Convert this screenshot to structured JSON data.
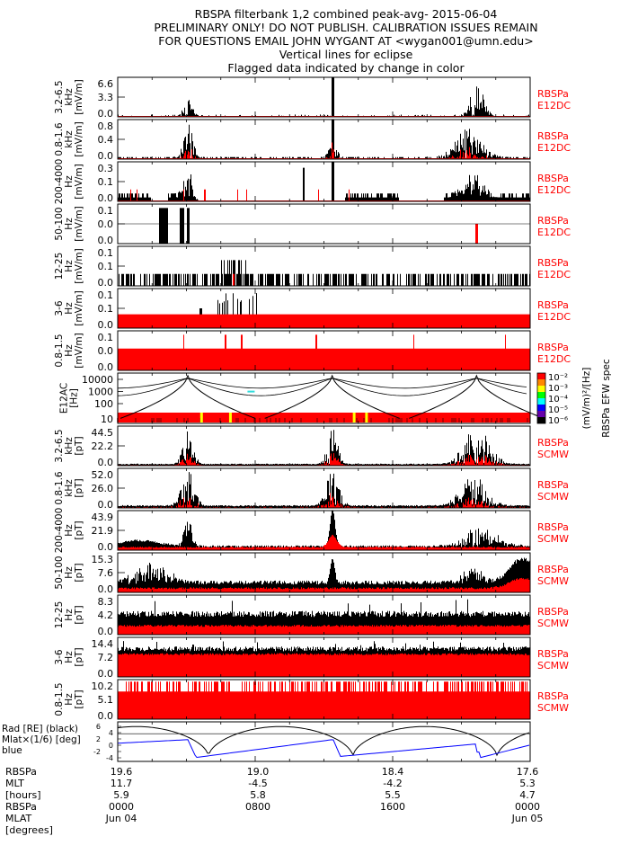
{
  "title_lines": [
    "RBSPA filterbank 1,2 combined peak-avg- 2015-06-04",
    "PRELIMINARY ONLY! DO NOT PUBLISH. CALIBRATION ISSUES REMAIN",
    "FOR QUESTIONS EMAIL JOHN WYGANT AT <wygan001@umn.edu>",
    "Vertical lines for eclipse",
    "Flagged data indicated by change in color"
  ],
  "colors": {
    "primary": "#000000",
    "flagged": "#ff0000",
    "mlat": "#0000ff"
  },
  "chart_data": [
    {
      "type": "line",
      "ylabel": [
        "3.2-6.5",
        "kHz",
        "[mV/m]"
      ],
      "yticks": [
        "0.0",
        "3.3",
        "6.6"
      ],
      "ylim": [
        0,
        6.6
      ],
      "right_label": [
        "RBSPa",
        "E12DC"
      ]
    },
    {
      "type": "line",
      "ylabel": [
        "0.8-1.6",
        "kHz",
        "[mV/m]"
      ],
      "yticks": [
        "0.0",
        "0.4",
        "0.8"
      ],
      "ylim": [
        0,
        0.8
      ],
      "right_label": [
        "RBSPa",
        "E12DC"
      ]
    },
    {
      "type": "line",
      "ylabel": [
        "200-4000",
        "Hz",
        "[mV/m]"
      ],
      "yticks": [
        "0.0",
        "0.1",
        "0.3"
      ],
      "ylim": [
        0,
        0.3
      ],
      "right_label": [
        "RBSPa",
        "E12DC"
      ]
    },
    {
      "type": "line",
      "ylabel": [
        "50-100",
        "Hz",
        "[mV/m]"
      ],
      "yticks": [
        "0.0",
        "0.0",
        "0.1"
      ],
      "ylim": [
        0,
        0.1
      ],
      "right_label": [
        "RBSPa",
        "E12DC"
      ]
    },
    {
      "type": "line",
      "ylabel": [
        "12-25",
        "Hz",
        "[mV/m]"
      ],
      "yticks": [
        "0.0",
        "0.1",
        "0.1"
      ],
      "ylim": [
        0,
        0.1
      ],
      "right_label": [
        "RBSPa",
        "E12DC"
      ]
    },
    {
      "type": "line",
      "ylabel": [
        "3-6",
        "Hz",
        "[mV/m]"
      ],
      "yticks": [
        "0.0",
        "0.1",
        "0.1"
      ],
      "ylim": [
        0,
        0.1
      ],
      "right_label": [
        "RBSPa",
        "E12DC"
      ]
    },
    {
      "type": "line",
      "ylabel": [
        "0.8-1.5",
        "Hz",
        "[mV/m]"
      ],
      "yticks": [
        "0.0",
        "0.0",
        "0.1"
      ],
      "ylim": [
        0,
        0.1
      ],
      "right_label": [
        "RBSPa",
        "E12DC"
      ]
    },
    {
      "type": "heatmap",
      "ylabel": [
        "E12AC",
        "[Hz]"
      ],
      "yticks": [
        "10",
        "100",
        "1000",
        "10000"
      ],
      "yscale": "log",
      "ylim": [
        5,
        20000
      ],
      "colorbar": {
        "ticks": [
          "10⁻²",
          "10⁻³",
          "10⁻⁴",
          "10⁻⁵",
          "10⁻⁶"
        ],
        "label": "(mV/m)²/[Hz]",
        "title": "RBSPa EFW spec"
      }
    },
    {
      "type": "line",
      "ylabel": [
        "3.2-6.5",
        "kHz",
        "[pT]"
      ],
      "yticks": [
        "0.0",
        "22.2",
        "44.5"
      ],
      "ylim": [
        0,
        44.5
      ],
      "right_label": [
        "RBSPa",
        "SCMW"
      ]
    },
    {
      "type": "line",
      "ylabel": [
        "0.8-1.6",
        "kHz",
        "[pT]"
      ],
      "yticks": [
        "0.0",
        "26.0",
        "52.0"
      ],
      "ylim": [
        0,
        52.0
      ],
      "right_label": [
        "RBSPa",
        "SCMW"
      ]
    },
    {
      "type": "line",
      "ylabel": [
        "200-4000",
        "Hz",
        "[pT]"
      ],
      "yticks": [
        "0.0",
        "21.9",
        "43.9"
      ],
      "ylim": [
        0,
        43.9
      ],
      "right_label": [
        "RBSPa",
        "SCMW"
      ]
    },
    {
      "type": "line",
      "ylabel": [
        "50-100",
        "Hz",
        "[pT]"
      ],
      "yticks": [
        "0.0",
        "7.6",
        "15.3"
      ],
      "ylim": [
        0,
        15.3
      ],
      "right_label": [
        "RBSPa",
        "SCMW"
      ]
    },
    {
      "type": "line",
      "ylabel": [
        "12-25",
        "Hz",
        "[pT]"
      ],
      "yticks": [
        "0.0",
        "4.2",
        "8.3"
      ],
      "ylim": [
        0,
        8.3
      ],
      "right_label": [
        "RBSPa",
        "SCMW"
      ]
    },
    {
      "type": "line",
      "ylabel": [
        "3-6",
        "Hz",
        "[pT]"
      ],
      "yticks": [
        "0.0",
        "7.2",
        "14.4"
      ],
      "ylim": [
        0,
        14.4
      ],
      "right_label": [
        "RBSPa",
        "SCMW"
      ]
    },
    {
      "type": "line",
      "ylabel": [
        "0.8-1.5",
        "Hz",
        "[pT]"
      ],
      "yticks": [
        "0.0",
        "5.1",
        "10.2"
      ],
      "ylim": [
        0,
        10.2
      ],
      "right_label": [
        "RBSPa",
        "SCMW"
      ]
    },
    {
      "type": "line",
      "ylabel": [
        "Rad [RE] (black)",
        "Mlat×(1/6) [deg] blue"
      ],
      "yticks": [
        "-4",
        "-2",
        "0",
        "2",
        "4",
        "6"
      ],
      "ylim": [
        -5,
        6.5
      ],
      "series": [
        {
          "color": "#000000"
        },
        {
          "color": "#0000ff"
        }
      ]
    }
  ],
  "x_axis": {
    "row_labels": [
      "RBSPa",
      "MLT",
      "[hours]",
      "RBSPa",
      "MLAT",
      "[degrees]"
    ],
    "ticks": [
      {
        "lines": [
          "19.6",
          "11.7",
          "5.9",
          "0000",
          "Jun 04"
        ]
      },
      {
        "lines": [
          "19.0",
          "-4.5",
          "5.8",
          "0800",
          ""
        ]
      },
      {
        "lines": [
          "18.4",
          "-4.2",
          "5.5",
          "1600",
          ""
        ]
      },
      {
        "lines": [
          "17.6",
          "5.3",
          "4.7",
          "0000",
          "Jun 05"
        ]
      }
    ]
  }
}
